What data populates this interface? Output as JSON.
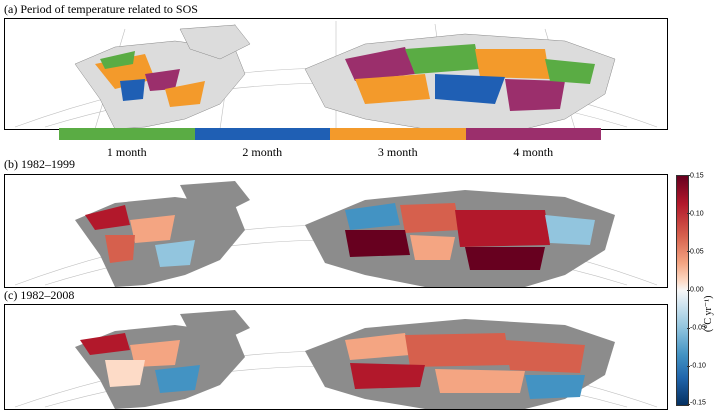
{
  "panels": {
    "a": {
      "title": "(a) Period of temperature related to SOS"
    },
    "b": {
      "title": "(b) 1982–1999"
    },
    "c": {
      "title": "(c) 1982–2008"
    }
  },
  "legend": {
    "items": [
      {
        "label": "1 month",
        "color": "#5aac44"
      },
      {
        "label": "2 month",
        "color": "#1f5fb4"
      },
      {
        "label": "3 month",
        "color": "#f39a2b"
      },
      {
        "label": "4 month",
        "color": "#9b2f6c"
      }
    ]
  },
  "colorbar": {
    "unit_label": "(°C yr⁻¹)",
    "ticks": [
      "0.15",
      "0.10",
      "0.05",
      "0.00",
      "-0.05",
      "-0.10",
      "-0.15"
    ],
    "range": [
      -0.15,
      0.15
    ]
  },
  "colors": {
    "land_a": "#dcdcdc",
    "land_bc": "#8c8c8c",
    "graticule": "#bfbfbf"
  }
}
